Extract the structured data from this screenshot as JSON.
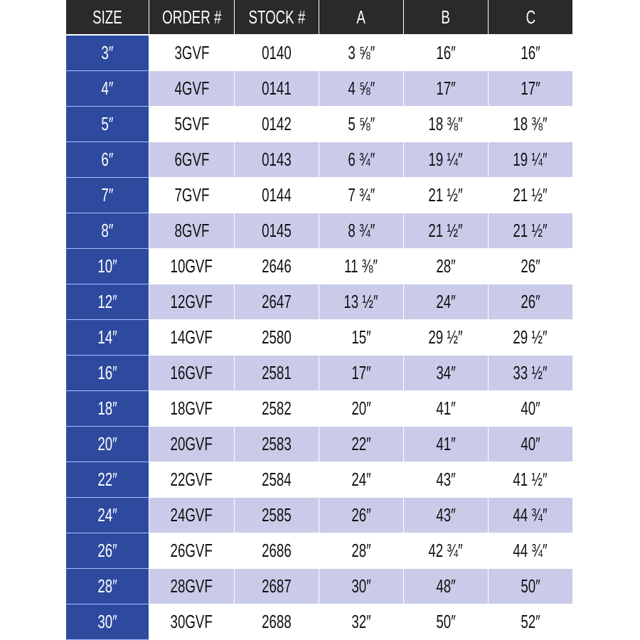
{
  "colors": {
    "header_bg": "#2b2929",
    "size_col_bg": "#2d4a9f",
    "alt_row_bg": "#cacbe9"
  },
  "headers": [
    "SIZE",
    "ORDER #",
    "STOCK #",
    "A",
    "B",
    "C"
  ],
  "rows": [
    [
      "3″",
      "3GVF",
      "0140",
      "3 ⅝″",
      "16″",
      "16″"
    ],
    [
      "4″",
      "4GVF",
      "0141",
      "4 ⅝″",
      "17″",
      "17″"
    ],
    [
      "5″",
      "5GVF",
      "0142",
      "5 ⅝″",
      "18 ⅜″",
      "18 ⅜″"
    ],
    [
      "6″",
      "6GVF",
      "0143",
      "6 ¾″",
      "19 ¼″",
      "19 ¼″"
    ],
    [
      "7″",
      "7GVF",
      "0144",
      "7 ¾″",
      "21 ½″",
      "21 ½″"
    ],
    [
      "8″",
      "8GVF",
      "0145",
      "8 ¾″",
      "21 ½″",
      "21 ½″"
    ],
    [
      "10″",
      "10GVF",
      "2646",
      "11 ⅜″",
      "28″",
      "26″"
    ],
    [
      "12″",
      "12GVF",
      "2647",
      "13 ½″",
      "24″",
      "26″"
    ],
    [
      "14″",
      "14GVF",
      "2580",
      "15″",
      "29 ½″",
      "29 ½″"
    ],
    [
      "16″",
      "16GVF",
      "2581",
      "17″",
      "34″",
      "33 ½″"
    ],
    [
      "18″",
      "18GVF",
      "2582",
      "20″",
      "41″",
      "40″"
    ],
    [
      "20″",
      "20GVF",
      "2583",
      "22″",
      "41″",
      "40″"
    ],
    [
      "22″",
      "22GVF",
      "2584",
      "24″",
      "43″",
      "41 ½″"
    ],
    [
      "24″",
      "24GVF",
      "2585",
      "26″",
      "43″",
      "44 ¾″"
    ],
    [
      "26″",
      "26GVF",
      "2686",
      "28″",
      "42 ¾″",
      "44 ¾″"
    ],
    [
      "28″",
      "28GVF",
      "2687",
      "30″",
      "48″",
      "50″"
    ],
    [
      "30″",
      "30GVF",
      "2688",
      "32″",
      "50″",
      "52″"
    ]
  ]
}
